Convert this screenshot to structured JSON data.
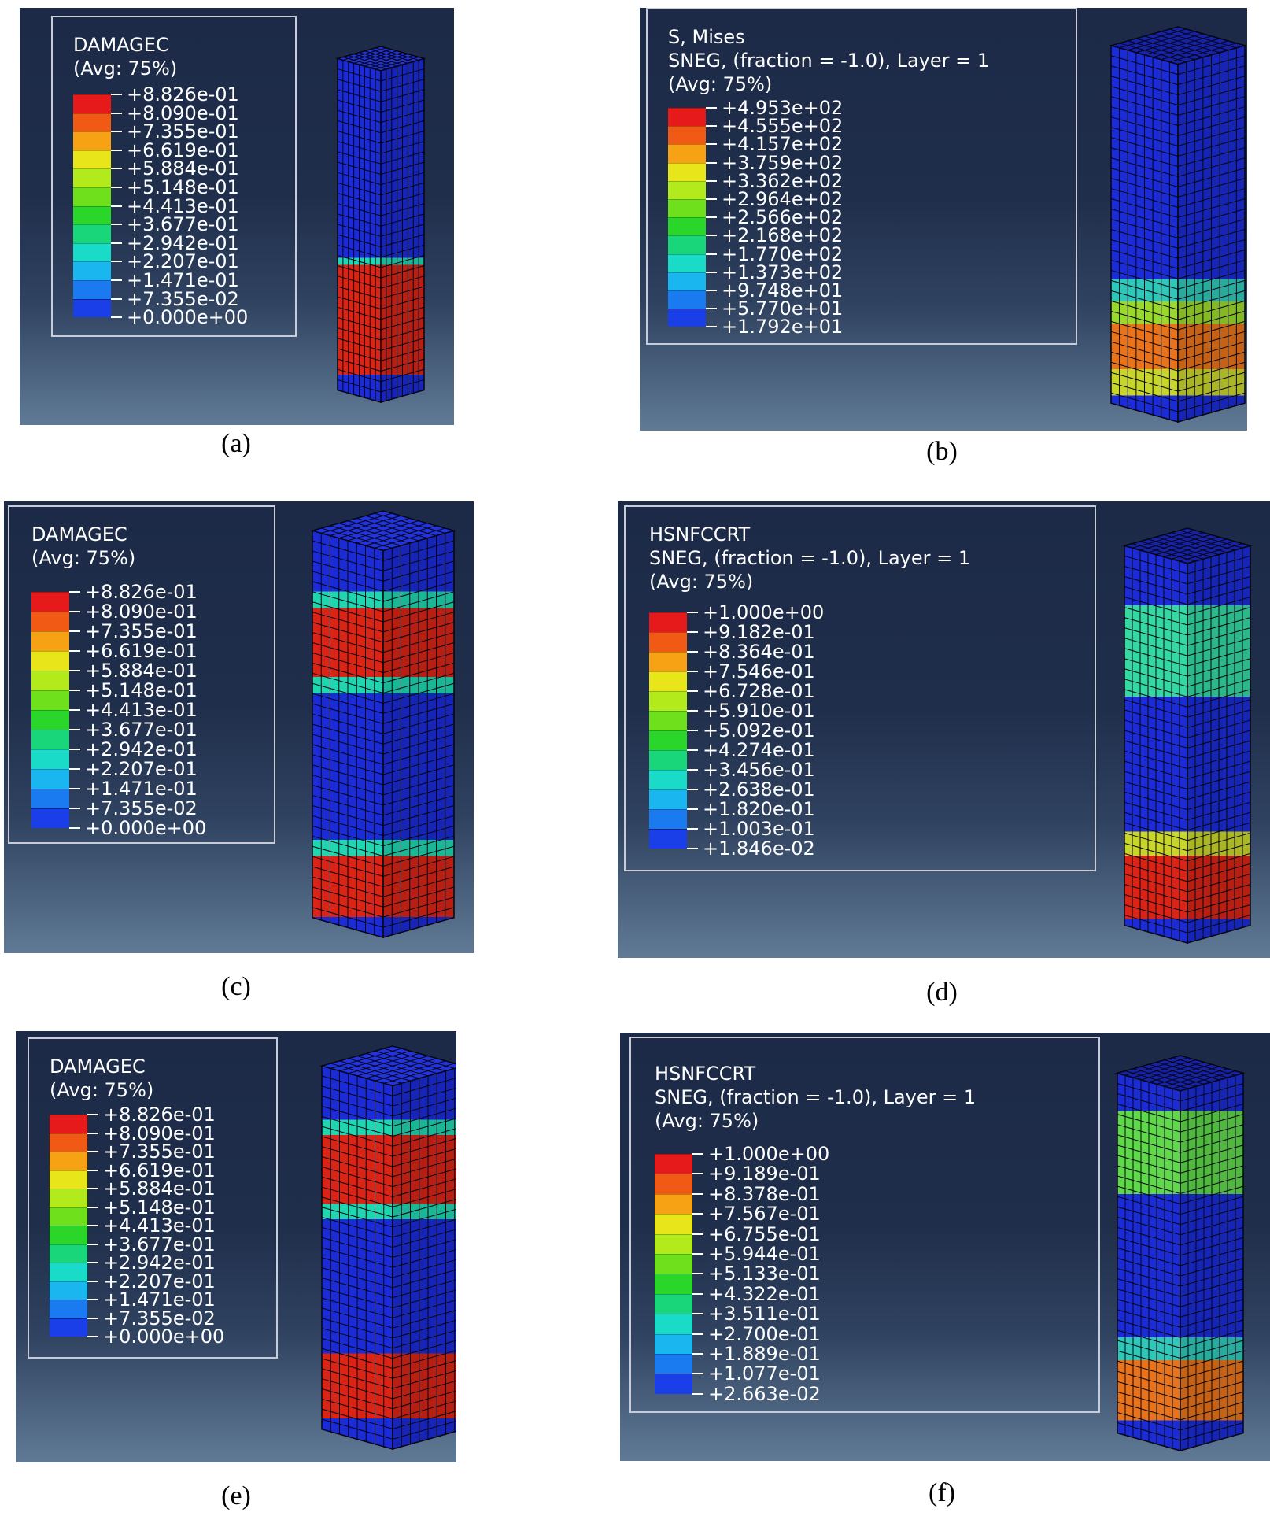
{
  "panels": [
    {
      "id": "a",
      "caption": "(a)",
      "title_lines": [
        "DAMAGEC",
        "(Avg: 75%)"
      ],
      "values": [
        "+8.826e-01",
        "+8.090e-01",
        "+7.355e-01",
        "+6.619e-01",
        "+5.884e-01",
        "+5.148e-01",
        "+4.413e-01",
        "+3.677e-01",
        "+2.942e-01",
        "+2.207e-01",
        "+1.471e-01",
        "+7.355e-02",
        "+0.000e+00"
      ],
      "column": {
        "top_open": false,
        "bands": [
          {
            "from": 0.0,
            "to": 0.58,
            "color": "#1b2bd6"
          },
          {
            "from": 0.55,
            "to": 0.6,
            "color": "#1fd6b0"
          },
          {
            "from": 0.6,
            "to": 0.92,
            "color": "#d92416"
          },
          {
            "from": 0.92,
            "to": 1.0,
            "color": "#1b2bd6"
          }
        ]
      }
    },
    {
      "id": "b",
      "caption": "(b)",
      "title_lines": [
        "S, Mises",
        "SNEG, (fraction = -1.0), Layer = 1",
        "(Avg: 75%)"
      ],
      "values": [
        "+4.953e+02",
        "+4.555e+02",
        "+4.157e+02",
        "+3.759e+02",
        "+3.362e+02",
        "+2.964e+02",
        "+2.566e+02",
        "+2.168e+02",
        "+1.770e+02",
        "+1.373e+02",
        "+9.748e+01",
        "+5.770e+01",
        "+1.792e+01"
      ],
      "column": {
        "top_open": true,
        "bands": [
          {
            "from": 0.0,
            "to": 0.62,
            "color": "#1b2bd6"
          },
          {
            "from": 0.62,
            "to": 0.68,
            "color": "#2fc8b8"
          },
          {
            "from": 0.68,
            "to": 0.74,
            "color": "#9bd82c"
          },
          {
            "from": 0.74,
            "to": 0.86,
            "color": "#e8731a"
          },
          {
            "from": 0.86,
            "to": 0.93,
            "color": "#c8d62c"
          },
          {
            "from": 0.93,
            "to": 1.0,
            "color": "#1b2bd6"
          }
        ]
      }
    },
    {
      "id": "c",
      "caption": "(c)",
      "title_lines": [
        "DAMAGEC",
        "(Avg: 75%)"
      ],
      "values": [
        "+8.826e-01",
        "+8.090e-01",
        "+7.355e-01",
        "+6.619e-01",
        "+5.884e-01",
        "+5.148e-01",
        "+4.413e-01",
        "+3.677e-01",
        "+2.942e-01",
        "+2.207e-01",
        "+1.471e-01",
        "+7.355e-02",
        "+0.000e+00"
      ],
      "column": {
        "top_open": false,
        "bands": [
          {
            "from": 0.0,
            "to": 0.15,
            "color": "#1b2bd6"
          },
          {
            "from": 0.15,
            "to": 0.19,
            "color": "#1fd6b0"
          },
          {
            "from": 0.19,
            "to": 0.36,
            "color": "#d92416"
          },
          {
            "from": 0.36,
            "to": 0.4,
            "color": "#1fd6b0"
          },
          {
            "from": 0.4,
            "to": 0.76,
            "color": "#1b2bd6"
          },
          {
            "from": 0.76,
            "to": 0.8,
            "color": "#1fd6b0"
          },
          {
            "from": 0.8,
            "to": 0.95,
            "color": "#d92416"
          },
          {
            "from": 0.95,
            "to": 1.0,
            "color": "#1b2bd6"
          }
        ]
      }
    },
    {
      "id": "d",
      "caption": "(d)",
      "title_lines": [
        "HSNFCCRT",
        "SNEG, (fraction = -1.0), Layer = 1",
        "(Avg: 75%)"
      ],
      "values": [
        "+1.000e+00",
        "+9.182e-01",
        "+8.364e-01",
        "+7.546e-01",
        "+6.728e-01",
        "+5.910e-01",
        "+5.092e-01",
        "+4.274e-01",
        "+3.456e-01",
        "+2.638e-01",
        "+1.820e-01",
        "+1.003e-01",
        "+1.846e-02"
      ],
      "column": {
        "top_open": true,
        "bands": [
          {
            "from": 0.0,
            "to": 0.15,
            "color": "#1b2bd6"
          },
          {
            "from": 0.15,
            "to": 0.38,
            "color": "#34d8a0"
          },
          {
            "from": 0.38,
            "to": 0.72,
            "color": "#1b2bd6"
          },
          {
            "from": 0.72,
            "to": 0.78,
            "color": "#c8d62c"
          },
          {
            "from": 0.78,
            "to": 0.94,
            "color": "#d92416"
          },
          {
            "from": 0.94,
            "to": 1.0,
            "color": "#1b2bd6"
          }
        ]
      }
    },
    {
      "id": "e",
      "caption": "(e)",
      "title_lines": [
        "DAMAGEC",
        "(Avg: 75%)"
      ],
      "values": [
        "+8.826e-01",
        "+8.090e-01",
        "+7.355e-01",
        "+6.619e-01",
        "+5.884e-01",
        "+5.148e-01",
        "+4.413e-01",
        "+3.677e-01",
        "+2.942e-01",
        "+2.207e-01",
        "+1.471e-01",
        "+7.355e-02",
        "+0.000e+00"
      ],
      "column": {
        "top_open": false,
        "bands": [
          {
            "from": 0.0,
            "to": 0.14,
            "color": "#1b2bd6"
          },
          {
            "from": 0.14,
            "to": 0.18,
            "color": "#1fd6b0"
          },
          {
            "from": 0.18,
            "to": 0.36,
            "color": "#d92416"
          },
          {
            "from": 0.36,
            "to": 0.4,
            "color": "#1fd6b0"
          },
          {
            "from": 0.4,
            "to": 0.75,
            "color": "#1b2bd6"
          },
          {
            "from": 0.75,
            "to": 0.92,
            "color": "#d92416"
          },
          {
            "from": 0.92,
            "to": 1.0,
            "color": "#1b2bd6"
          }
        ]
      }
    },
    {
      "id": "f",
      "caption": "(f)",
      "title_lines": [
        "HSNFCCRT",
        "SNEG, (fraction = -1.0), Layer = 1",
        "(Avg: 75%)"
      ],
      "values": [
        "+1.000e+00",
        "+9.189e-01",
        "+8.378e-01",
        "+7.567e-01",
        "+6.755e-01",
        "+5.944e-01",
        "+5.133e-01",
        "+4.322e-01",
        "+3.511e-01",
        "+2.700e-01",
        "+1.889e-01",
        "+1.077e-01",
        "+2.663e-02"
      ],
      "column": {
        "top_open": true,
        "bands": [
          {
            "from": 0.0,
            "to": 0.1,
            "color": "#1b2bd6"
          },
          {
            "from": 0.1,
            "to": 0.32,
            "color": "#5fd84a"
          },
          {
            "from": 0.32,
            "to": 0.7,
            "color": "#1b2bd6"
          },
          {
            "from": 0.7,
            "to": 0.76,
            "color": "#2fc8b8"
          },
          {
            "from": 0.76,
            "to": 0.92,
            "color": "#e8731a"
          },
          {
            "from": 0.92,
            "to": 1.0,
            "color": "#1b2bd6"
          }
        ]
      }
    }
  ],
  "legend_colors": [
    "#e61a1a",
    "#f05a14",
    "#f7a214",
    "#e8e61a",
    "#b2ea1c",
    "#6fe01c",
    "#2ad62a",
    "#1ad67a",
    "#1adac8",
    "#1ab6f0",
    "#1a7af0",
    "#1a3ee8",
    "#1a14d2"
  ]
}
